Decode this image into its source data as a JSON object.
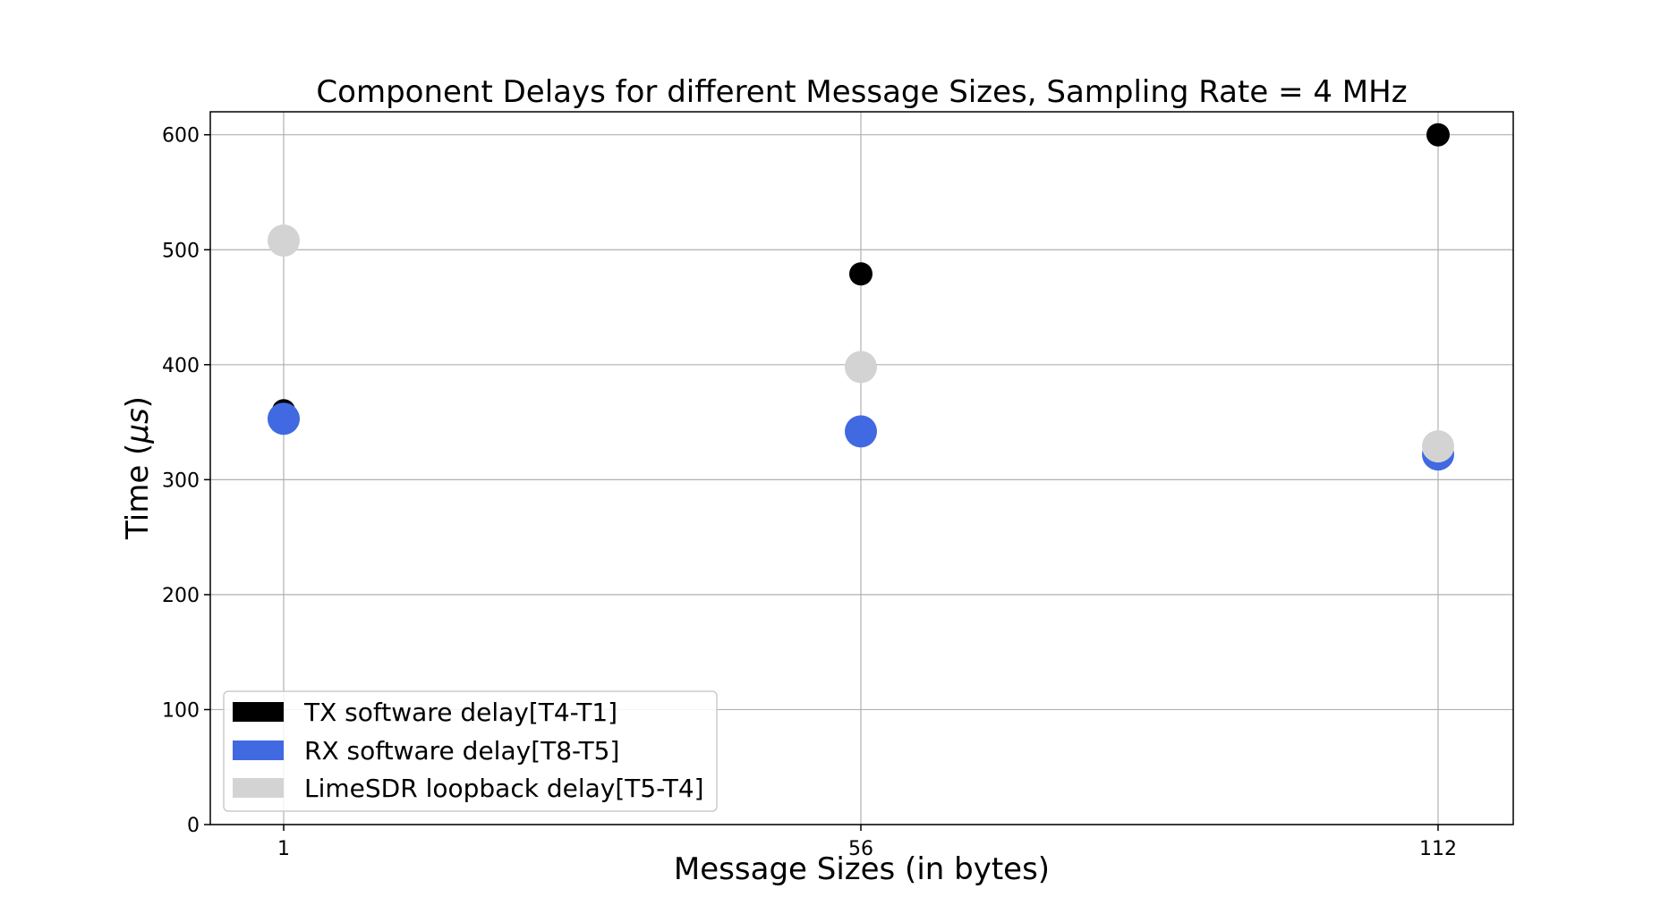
{
  "chart_data": {
    "type": "scatter",
    "title": "Component Delays for different Message Sizes, Sampling Rate = 4 MHz",
    "xlabel": "Message Sizes (in bytes)",
    "ylabel_prefix": "Time (",
    "ylabel_mu": "μs",
    "ylabel_suffix": ")",
    "categories": [
      "1",
      "56",
      "112"
    ],
    "ylim": [
      0,
      620
    ],
    "yticks": [
      0,
      100,
      200,
      300,
      400,
      500,
      600
    ],
    "grid": true,
    "legend_position": "lower-left",
    "series": [
      {
        "name": "TX software delay[T4-T1]",
        "color": "#000000",
        "values": [
          360,
          479,
          600
        ]
      },
      {
        "name": "RX software delay[T8-T5]",
        "color": "#4169e1",
        "values": [
          353,
          342,
          322
        ]
      },
      {
        "name": "LimeSDR loopback delay[T5-T4]",
        "color": "#d3d3d3",
        "values": [
          508,
          398,
          329
        ]
      }
    ]
  }
}
